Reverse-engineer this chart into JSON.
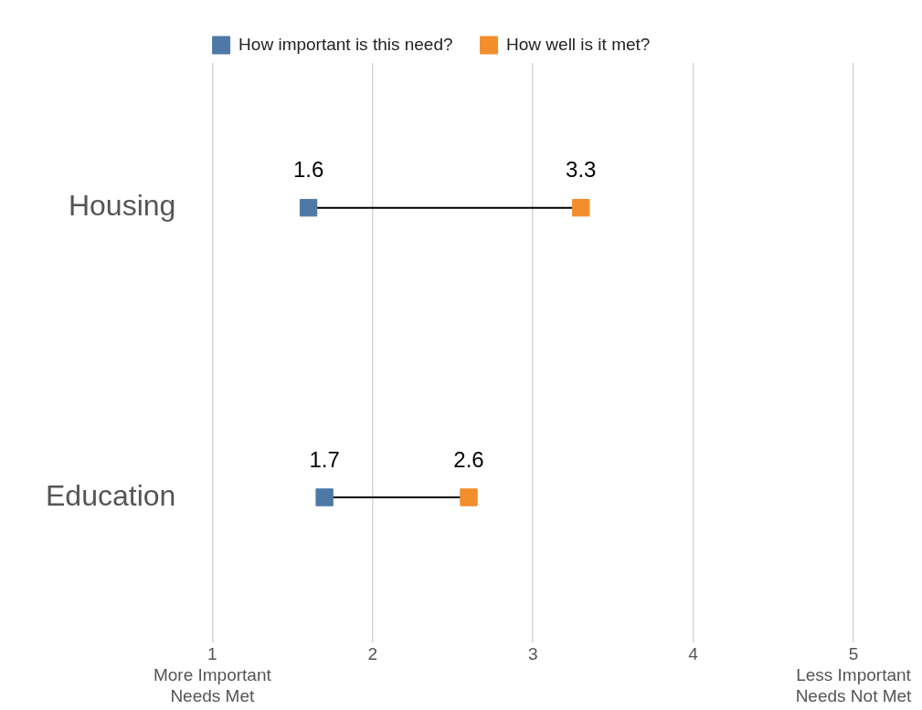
{
  "chart_data": {
    "type": "scatter",
    "orientation": "horizontal",
    "categories": [
      "Housing",
      "Education"
    ],
    "series": [
      {
        "name": "How important is this need?",
        "color": "#4e79a7",
        "values": [
          1.6,
          1.7
        ]
      },
      {
        "name": "How well is it met?",
        "color": "#f28e2b",
        "values": [
          3.3,
          2.6
        ]
      }
    ],
    "xlim": [
      1,
      5
    ],
    "xticks": [
      {
        "value": 1,
        "label": "1\nMore Important\nNeeds Met"
      },
      2,
      3,
      4,
      {
        "value": 5,
        "label": "5\nLess Important\nNeeds Not Met"
      }
    ],
    "grid": "x",
    "legend": "top",
    "marker": "square",
    "data_labels": true
  }
}
